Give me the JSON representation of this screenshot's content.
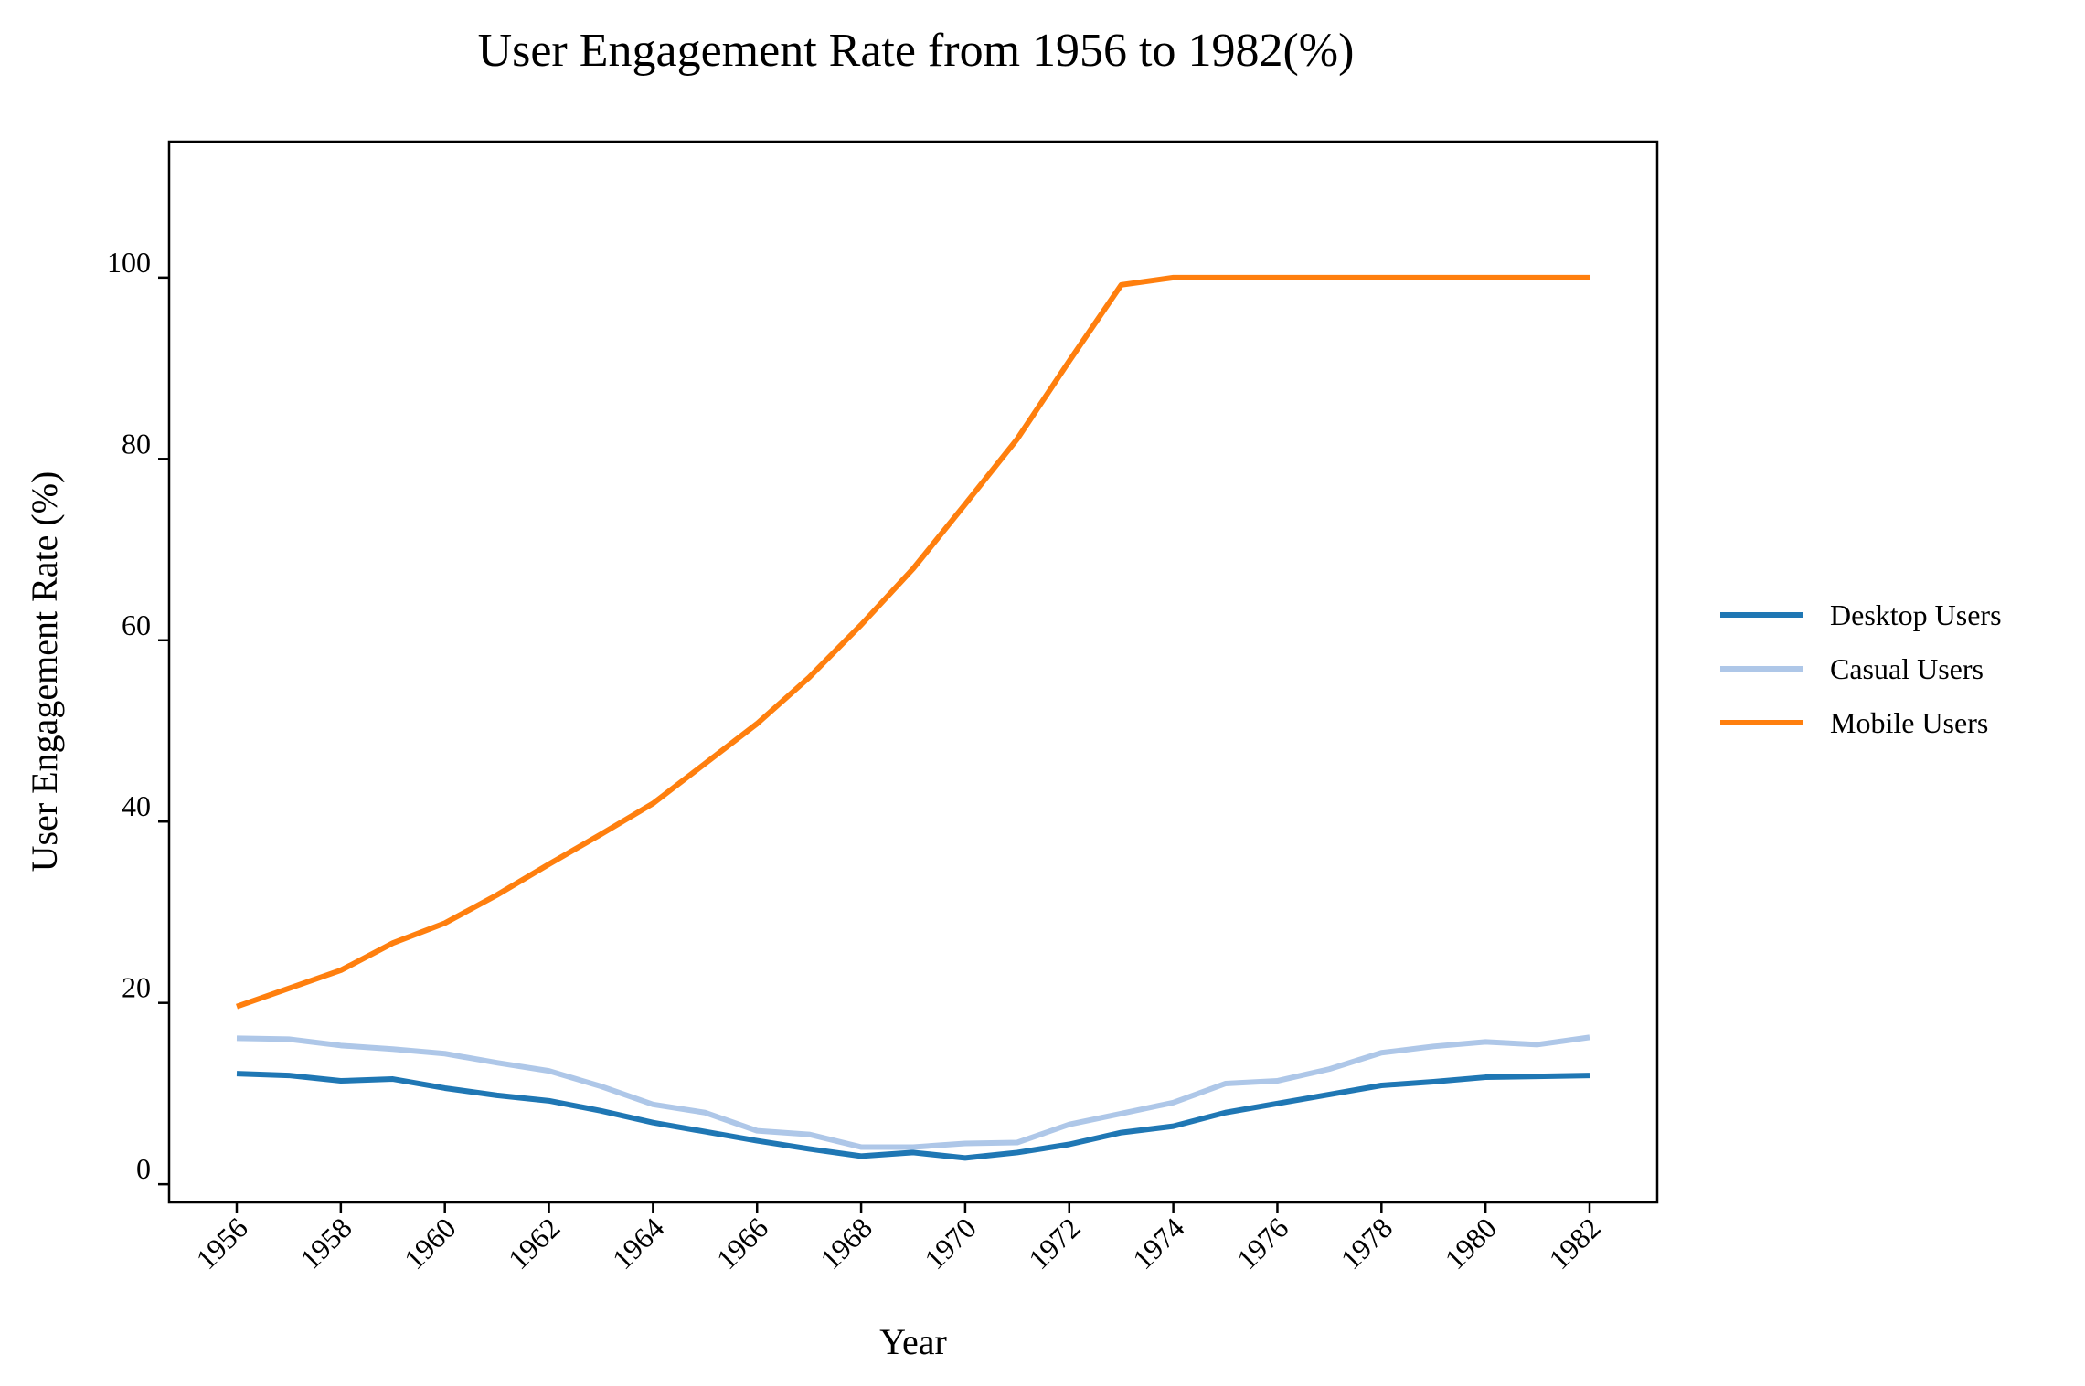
{
  "chart_data": {
    "type": "line",
    "title": "User Engagement Rate from 1956 to 1982(%)",
    "xlabel": "Year",
    "ylabel": "User Engagement Rate (%)",
    "x": [
      1956,
      1957,
      1958,
      1959,
      1960,
      1961,
      1962,
      1963,
      1964,
      1965,
      1966,
      1967,
      1968,
      1969,
      1970,
      1971,
      1972,
      1973,
      1974,
      1975,
      1976,
      1977,
      1978,
      1979,
      1980,
      1981,
      1982
    ],
    "xticks": [
      "1956",
      "1958",
      "1960",
      "1962",
      "1964",
      "1966",
      "1968",
      "1970",
      "1972",
      "1974",
      "1976",
      "1978",
      "1980",
      "1982"
    ],
    "yticks": [
      "0",
      "20",
      "40",
      "60",
      "80",
      "100"
    ],
    "xlim": [
      1954.7,
      1983.3
    ],
    "ylim": [
      -2,
      115
    ],
    "grid": false,
    "legend_position": "right",
    "series": [
      {
        "name": "Desktop Users",
        "color": "#1f77b4",
        "values": [
          12.2,
          12.0,
          11.4,
          11.6,
          10.6,
          9.8,
          9.2,
          8.1,
          6.8,
          5.8,
          4.8,
          3.9,
          3.1,
          3.5,
          2.9,
          3.5,
          4.4,
          5.7,
          6.4,
          7.9,
          8.9,
          9.9,
          10.9,
          11.3,
          11.8,
          11.9,
          12.0
        ]
      },
      {
        "name": "Casual Users",
        "color": "#aec7e8",
        "values": [
          16.1,
          16.0,
          15.3,
          14.9,
          14.4,
          13.4,
          12.5,
          10.8,
          8.8,
          7.9,
          5.9,
          5.5,
          4.1,
          4.1,
          4.5,
          4.6,
          6.6,
          7.8,
          9.0,
          11.1,
          11.4,
          12.7,
          14.5,
          15.2,
          15.7,
          15.4,
          16.2
        ]
      },
      {
        "name": "Mobile Users",
        "color": "#ff7f0e",
        "values": [
          19.6,
          21.6,
          23.6,
          26.6,
          28.8,
          31.9,
          35.3,
          38.6,
          42.0,
          46.4,
          50.8,
          55.9,
          61.7,
          67.9,
          75.0,
          82.2,
          90.8,
          99.2,
          100.0,
          100.0,
          100.0,
          100.0,
          100.0,
          100.0,
          100.0,
          100.0,
          100.0
        ]
      }
    ]
  }
}
